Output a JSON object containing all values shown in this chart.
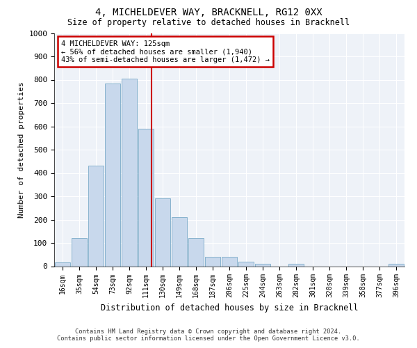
{
  "title": "4, MICHELDEVER WAY, BRACKNELL, RG12 0XX",
  "subtitle": "Size of property relative to detached houses in Bracknell",
  "xlabel": "Distribution of detached houses by size in Bracknell",
  "ylabel": "Number of detached properties",
  "bar_color": "#c8d8ec",
  "bar_edge_color": "#7aaac8",
  "background_color": "#eef2f8",
  "grid_color": "#ffffff",
  "categories": [
    "16sqm",
    "35sqm",
    "54sqm",
    "73sqm",
    "92sqm",
    "111sqm",
    "130sqm",
    "149sqm",
    "168sqm",
    "187sqm",
    "206sqm",
    "225sqm",
    "244sqm",
    "263sqm",
    "282sqm",
    "301sqm",
    "320sqm",
    "339sqm",
    "358sqm",
    "377sqm",
    "396sqm"
  ],
  "values": [
    15,
    120,
    430,
    785,
    805,
    590,
    290,
    210,
    120,
    40,
    40,
    20,
    10,
    0,
    10,
    0,
    0,
    0,
    0,
    0,
    10
  ],
  "ylim": [
    0,
    1000
  ],
  "yticks": [
    0,
    100,
    200,
    300,
    400,
    500,
    600,
    700,
    800,
    900,
    1000
  ],
  "property_line_x": 5.35,
  "property_line_color": "#cc0000",
  "annotation_text": "4 MICHELDEVER WAY: 125sqm\n← 56% of detached houses are smaller (1,940)\n43% of semi-detached houses are larger (1,472) →",
  "annotation_box_color": "#ffffff",
  "annotation_box_edge": "#cc0000",
  "footer_line1": "Contains HM Land Registry data © Crown copyright and database right 2024.",
  "footer_line2": "Contains public sector information licensed under the Open Government Licence v3.0."
}
